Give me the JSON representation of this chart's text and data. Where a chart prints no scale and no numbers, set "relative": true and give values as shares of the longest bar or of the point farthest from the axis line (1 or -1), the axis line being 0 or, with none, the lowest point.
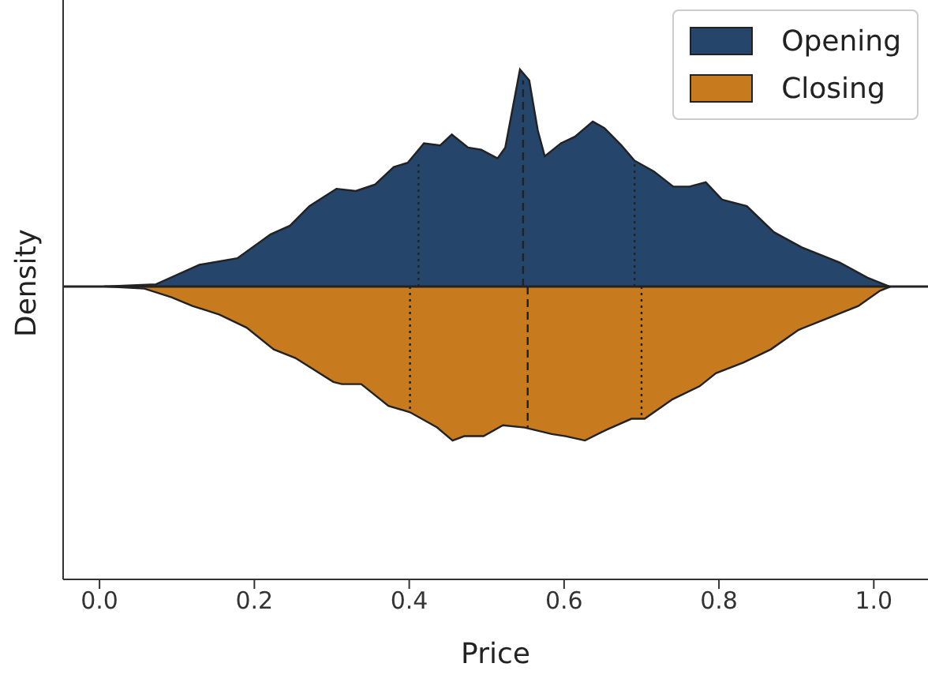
{
  "chart_data": {
    "type": "area",
    "xlabel": "Price",
    "ylabel": "Density",
    "relative": true,
    "xlim": [
      -0.047,
      1.07
    ],
    "xticks": [
      {
        "value": 0,
        "label": "0.0"
      },
      {
        "value": 0.2,
        "label": "0.2"
      },
      {
        "value": 0.4,
        "label": "0.4"
      },
      {
        "value": 0.6,
        "label": "0.6"
      },
      {
        "value": 0.8,
        "label": "0.8"
      },
      {
        "value": 1,
        "label": "1.0"
      }
    ],
    "legend": "top right",
    "ref_lines": [
      {
        "axis": "y",
        "value": 0,
        "color": "#222222"
      }
    ],
    "grid": false,
    "marker": "none",
    "series": [
      {
        "name": "Opening",
        "color": "#26456b",
        "x": [
          0.006,
          0.073,
          0.129,
          0.178,
          0.221,
          0.246,
          0.271,
          0.306,
          0.331,
          0.356,
          0.38,
          0.398,
          0.419,
          0.44,
          0.455,
          0.476,
          0.493,
          0.514,
          0.524,
          0.543,
          0.555,
          0.566,
          0.575,
          0.596,
          0.614,
          0.637,
          0.652,
          0.674,
          0.691,
          0.716,
          0.741,
          0.762,
          0.783,
          0.804,
          0.836,
          0.871,
          0.907,
          0.956,
          0.992,
          1.02
        ],
        "values": [
          0,
          0.01,
          0.1,
          0.13,
          0.24,
          0.28,
          0.37,
          0.45,
          0.44,
          0.47,
          0.55,
          0.57,
          0.66,
          0.65,
          0.7,
          0.64,
          0.63,
          0.59,
          0.64,
          1,
          0.95,
          0.72,
          0.6,
          0.66,
          0.69,
          0.76,
          0.73,
          0.65,
          0.58,
          0.53,
          0.46,
          0.46,
          0.48,
          0.4,
          0.37,
          0.25,
          0.18,
          0.11,
          0.04,
          0
        ]
      },
      {
        "name": "Closing",
        "color": "#c87b1e",
        "x": [
          0.006,
          0.058,
          0.093,
          0.12,
          0.155,
          0.19,
          0.225,
          0.253,
          0.302,
          0.313,
          0.338,
          0.373,
          0.401,
          0.436,
          0.456,
          0.471,
          0.496,
          0.521,
          0.549,
          0.584,
          0.602,
          0.627,
          0.655,
          0.687,
          0.704,
          0.74,
          0.775,
          0.796,
          0.832,
          0.867,
          0.903,
          0.938,
          0.98,
          1.008,
          1.022
        ],
        "values": [
          0,
          -0.01,
          -0.05,
          -0.09,
          -0.13,
          -0.19,
          -0.29,
          -0.33,
          -0.44,
          -0.45,
          -0.45,
          -0.55,
          -0.58,
          -0.65,
          -0.71,
          -0.69,
          -0.69,
          -0.64,
          -0.65,
          -0.68,
          -0.69,
          -0.71,
          -0.66,
          -0.61,
          -0.61,
          -0.52,
          -0.46,
          -0.4,
          -0.35,
          -0.29,
          -0.2,
          -0.15,
          -0.09,
          -0.02,
          0
        ]
      },
      {
        "type": "line",
        "color": "#222222",
        "line_style": "dotted",
        "x": [
          0.412,
          0.412
        ],
        "values": [
          0,
          0.57
        ]
      },
      {
        "type": "line",
        "color": "#222222",
        "line_style": "dashed",
        "x": [
          0.547,
          0.547
        ],
        "values": [
          0,
          0.95
        ]
      },
      {
        "type": "line",
        "color": "#222222",
        "line_style": "dotted",
        "x": [
          0.691,
          0.691
        ],
        "values": [
          0,
          0.58
        ]
      },
      {
        "type": "line",
        "color": "#222222",
        "line_style": "dotted",
        "x": [
          0.401,
          0.401
        ],
        "values": [
          0,
          -0.58
        ]
      },
      {
        "type": "line",
        "color": "#222222",
        "line_style": "dashed",
        "x": [
          0.553,
          0.553
        ],
        "values": [
          0,
          -0.65
        ]
      },
      {
        "type": "line",
        "color": "#222222",
        "line_style": "dotted",
        "x": [
          0.7,
          0.7
        ],
        "values": [
          0,
          -0.61
        ]
      }
    ]
  }
}
